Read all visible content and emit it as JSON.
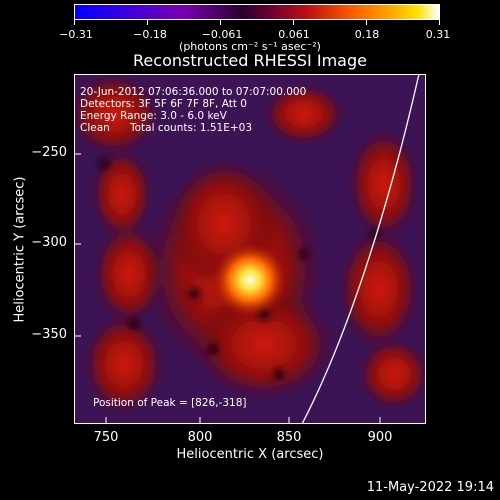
{
  "colorbar": {
    "tick_labels": [
      "−0.31",
      "−0.18",
      "−0.061",
      "0.061",
      "0.18",
      "0.31"
    ],
    "units": "(photons cm⁻² s⁻¹ asec⁻²)"
  },
  "title": "Reconstructed RHESSI Image",
  "annotations": {
    "time_range": "20-Jun-2012 07:06:36.000 to 07:07:00.000",
    "detectors": "Detectors: 3F 5F 6F 7F 8F, Att 0",
    "energy": "Energy Range: 3.0 - 6.0 keV",
    "method": "Clean",
    "counts": "Total counts: 1.51E+03",
    "peak": "Position of Peak = [826,-318]"
  },
  "axes": {
    "xlabel": "Heliocentric X (arcsec)",
    "ylabel": "Heliocentric Y (arcsec)",
    "x_ticks": [
      "750",
      "800",
      "850",
      "900"
    ],
    "y_ticks": [
      "−250",
      "−300",
      "−350"
    ]
  },
  "footer": "11-May-2022 19:14",
  "colors": {
    "background": "#000000",
    "foreground": "#ffffff",
    "limb": "#ffffff"
  }
}
